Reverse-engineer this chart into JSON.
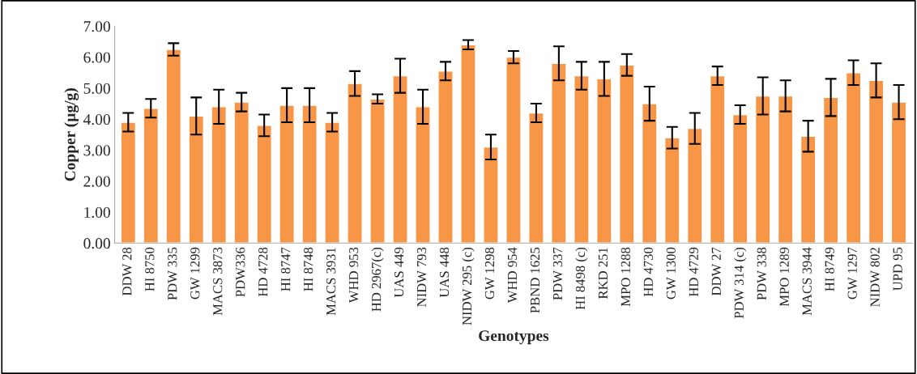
{
  "chart_data": {
    "type": "bar",
    "xlabel": "Genotypes",
    "ylabel": "Copper (µg/g)",
    "categories": [
      "DDW 28",
      "HI 8750",
      "PDW 335",
      "GW 1299",
      "MACS 3873",
      "PDW336",
      "HD 4728",
      "HI 8747",
      "HI 8748",
      "MACS 3931",
      "WHD 953",
      "HD 2967(c)",
      "UAS 449",
      "NIDW 793",
      "UAS 448",
      "NIDW 295 (c)",
      "GW 1298",
      "WHD 954",
      "PBND 1625",
      "PDW 337",
      "HI 8498 (c)",
      "RKD 251",
      "MPO 1288",
      "HD 4730",
      "GW 1300",
      "HD 4729",
      "DDW 27",
      "PDW 314 (c)",
      "PDW 338",
      "MPO 1289",
      "MACS 3944",
      "HI 8749",
      "GW 1297",
      "NIDW 802",
      "UPD 95"
    ],
    "values": [
      3.9,
      4.35,
      6.25,
      4.1,
      4.4,
      4.55,
      3.8,
      4.45,
      4.45,
      3.9,
      5.15,
      4.65,
      5.4,
      4.4,
      5.55,
      6.4,
      3.1,
      6.0,
      4.2,
      5.8,
      5.4,
      5.3,
      5.75,
      4.5,
      3.4,
      3.7,
      5.4,
      4.15,
      4.75,
      4.75,
      3.45,
      4.7,
      5.5,
      5.25,
      4.55
    ],
    "errors": [
      0.3,
      0.3,
      0.2,
      0.6,
      0.55,
      0.3,
      0.35,
      0.55,
      0.55,
      0.3,
      0.4,
      0.15,
      0.55,
      0.55,
      0.3,
      0.15,
      0.4,
      0.2,
      0.3,
      0.55,
      0.45,
      0.55,
      0.35,
      0.55,
      0.35,
      0.5,
      0.3,
      0.3,
      0.6,
      0.5,
      0.5,
      0.6,
      0.4,
      0.55,
      0.55
    ],
    "color": "#f79646",
    "ylim": [
      0,
      7
    ],
    "yticks": [
      {
        "value": 0,
        "label": "0.00"
      },
      {
        "value": 1,
        "label": "1.00"
      },
      {
        "value": 2,
        "label": "2.00"
      },
      {
        "value": 3,
        "label": "3.00"
      },
      {
        "value": 4,
        "label": "4.00"
      },
      {
        "value": 5,
        "label": "5.00"
      },
      {
        "value": 6,
        "label": "6.00"
      },
      {
        "value": 7,
        "label": "7.00"
      }
    ],
    "grid": false,
    "legend": false
  }
}
